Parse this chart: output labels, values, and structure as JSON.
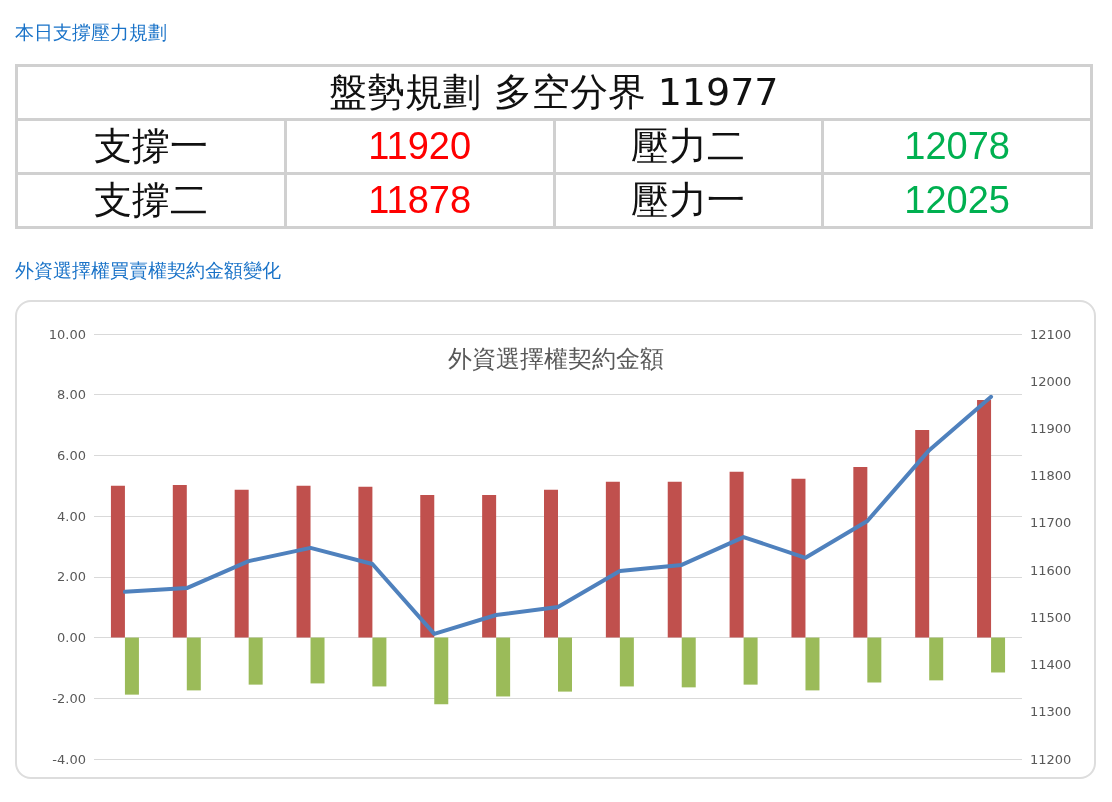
{
  "chart_data": [
    {
      "type": "other",
      "title": "本日支撐壓力規劃",
      "annotations": [
        "盤勢規劃 多空分界 11977",
        "支撐一",
        "11920",
        "壓力二",
        "12078",
        "支撐二",
        "11878",
        "壓力一",
        "12025"
      ]
    },
    {
      "type": "bar",
      "title": "外資選擇權契約金額",
      "subtitle": "外資選擇權買賣權契約金額變化",
      "categories": [
        null,
        null,
        null,
        null,
        null,
        null,
        null,
        null,
        null,
        null,
        null,
        null,
        null,
        null,
        null
      ],
      "series": [
        {
          "type": "bar",
          "color": "#c0504d",
          "values": [
            5.0,
            5.03,
            4.87,
            5.0,
            4.97,
            4.7,
            4.7,
            4.87,
            5.13,
            5.13,
            5.46,
            5.23,
            5.62,
            6.84,
            7.83
          ]
        },
        {
          "type": "bar",
          "color": "#9bbb59",
          "values": [
            -1.88,
            -1.74,
            -1.55,
            -1.51,
            -1.61,
            -2.2,
            -1.94,
            -1.78,
            -1.61,
            -1.64,
            -1.55,
            -1.74,
            -1.48,
            -1.41,
            -1.15
          ]
        },
        {
          "type": "line",
          "axis": "y2",
          "color": "#4f81bd",
          "values": [
            11554,
            11562,
            11619,
            11647,
            11613,
            11465,
            11505,
            11522,
            11598,
            11611,
            11670,
            11626,
            11704,
            11854,
            11967
          ]
        }
      ],
      "ylim": [
        -4,
        10
      ],
      "yticks": [
        {
          "value": -4,
          "label": "-4.00"
        },
        {
          "value": -2,
          "label": "-2.00"
        },
        {
          "value": 0,
          "label": "0.00"
        },
        {
          "value": 2,
          "label": "2.00"
        },
        {
          "value": 4,
          "label": "4.00"
        },
        {
          "value": 6,
          "label": "6.00"
        },
        {
          "value": 8,
          "label": "8.00"
        },
        {
          "value": 10,
          "label": "10.00"
        }
      ],
      "y2lim": [
        11200,
        12100
      ],
      "y2ticks": [
        11200,
        11300,
        11400,
        11500,
        11600,
        11700,
        11800,
        11900,
        12000,
        12100
      ],
      "grid": "y",
      "marker": "none",
      "line_style": "solid"
    }
  ]
}
